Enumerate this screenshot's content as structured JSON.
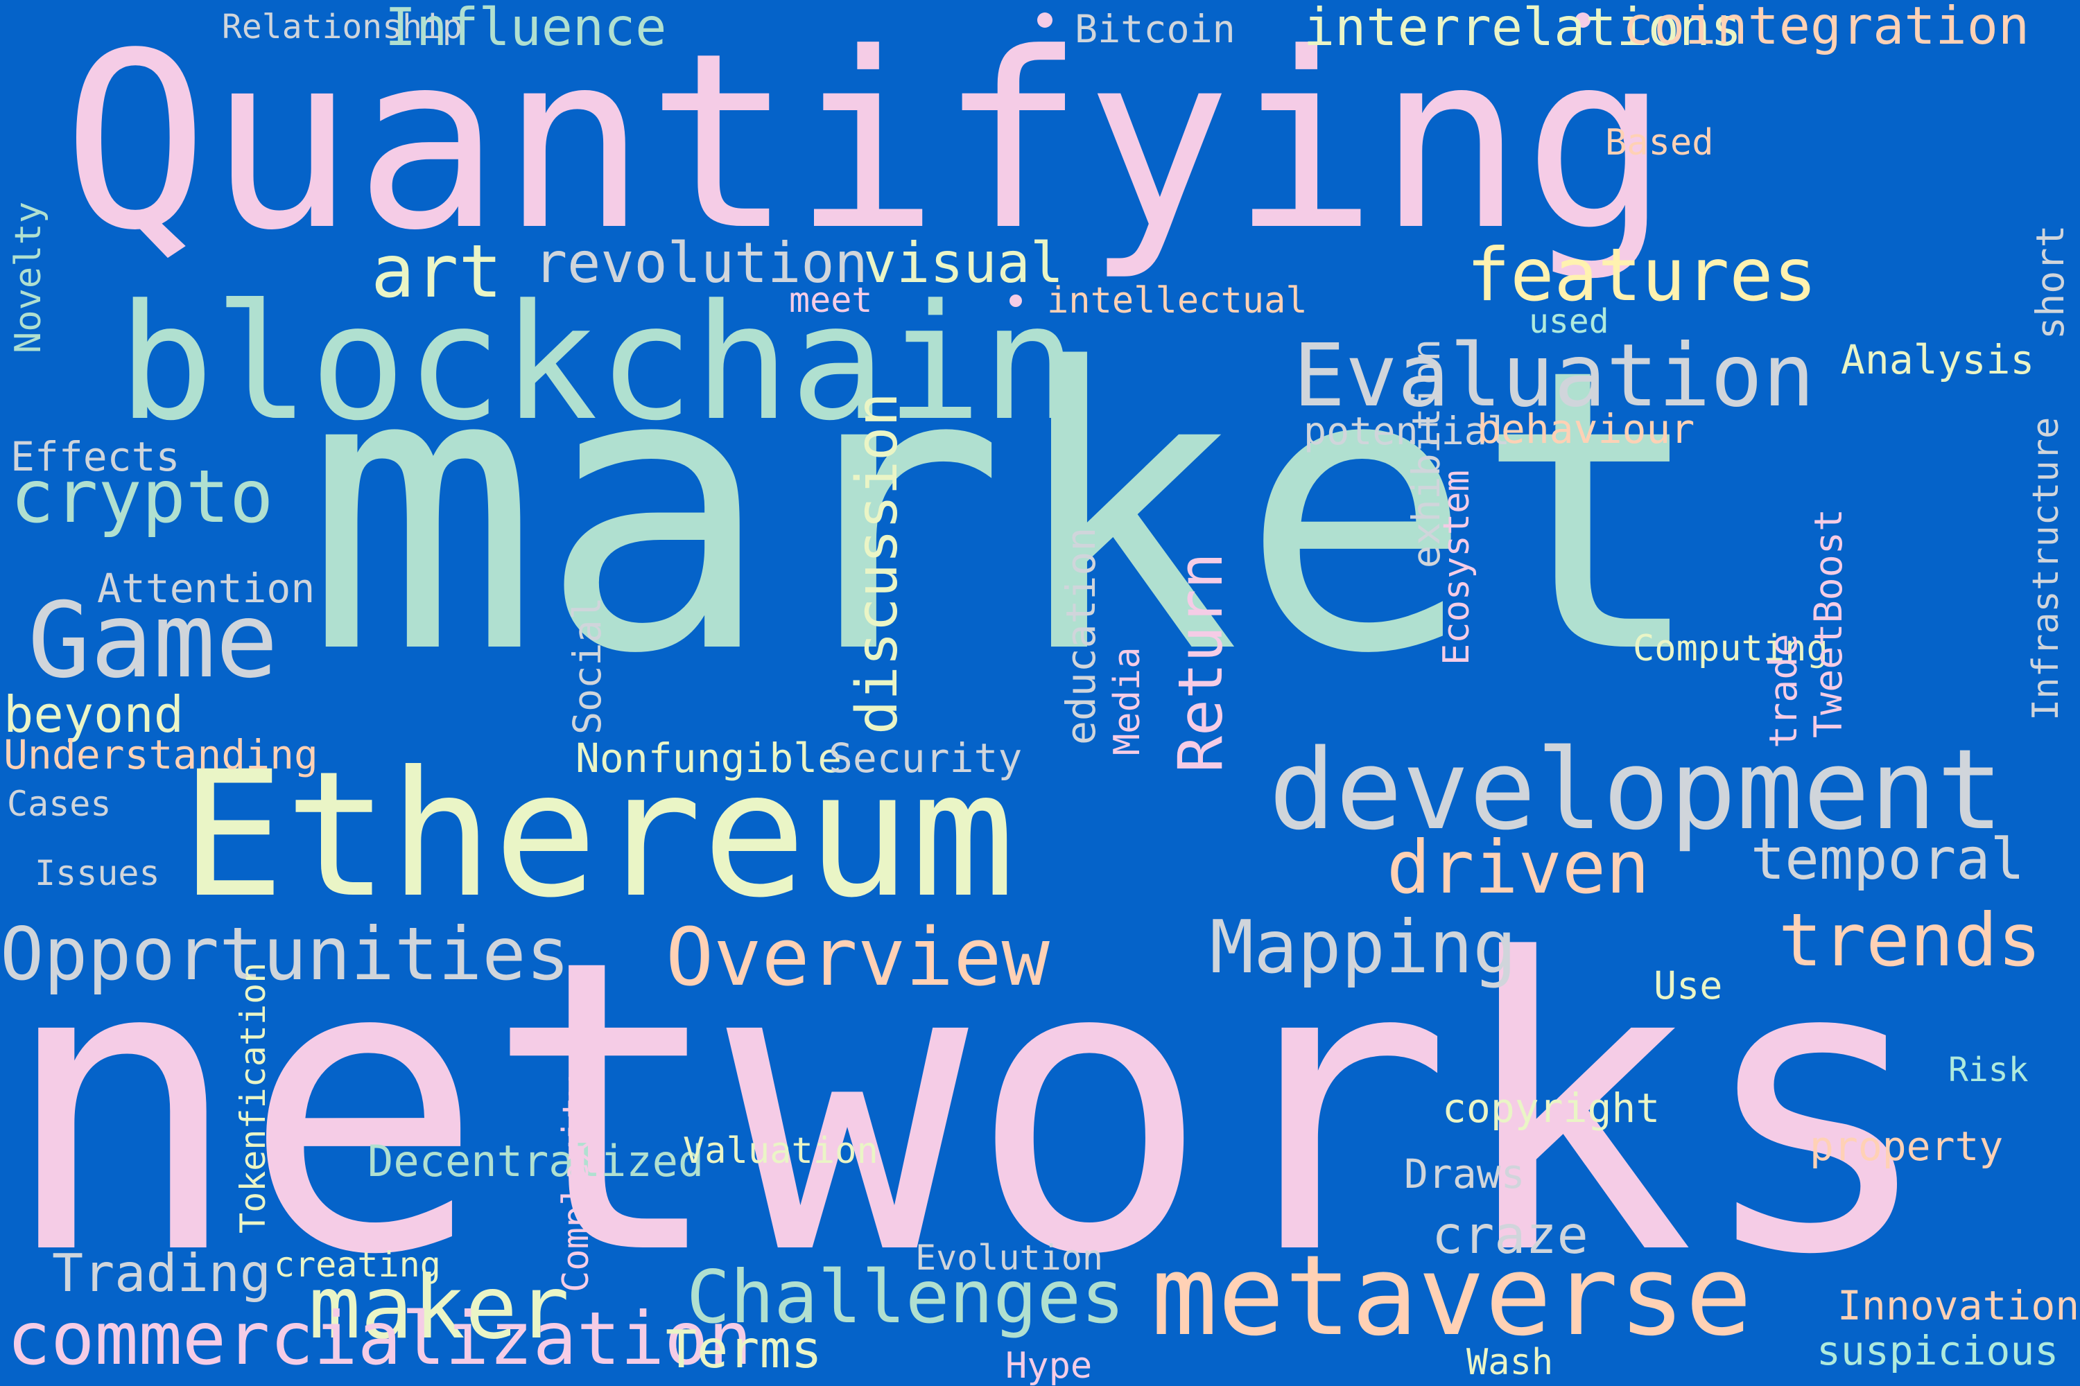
{
  "background_color": "#0563c9",
  "palette": {
    "pink": "#f5cce6",
    "mint": "#b0e0d0",
    "cream": "#eaf5c6",
    "yellow": "#fff2b0",
    "peach": "#ffd1b5",
    "silver": "#d0d5db",
    "aqua": "#aeeadd"
  },
  "words": [
    "Quantifying",
    "market",
    "networks",
    "Ethereum",
    "blockchain",
    "development",
    "metaverse",
    "Evaluation",
    "Game",
    "crypto",
    "maker",
    "Challenges",
    "Opportunities",
    "Overview",
    "trends",
    "Mapping",
    "driven",
    "temporal",
    "features",
    "art",
    "revolution",
    "visual",
    "Influence",
    "interrelations",
    "cointegration",
    "Bitcoin",
    "Relationship",
    "Based",
    "meet",
    "intellectual",
    "used",
    "Analysis",
    "potential",
    "behaviour",
    "Effects",
    "Attention",
    "beyond",
    "Understanding",
    "Cases",
    "Issues",
    "Nonfungible",
    "Security",
    "Computing",
    "Use",
    "Risk",
    "copyright",
    "property",
    "Draws",
    "Decentralized",
    "Valuation",
    "Trading",
    "creating",
    "craze",
    "Evolution",
    "Innovation",
    "commercialization",
    "Terms",
    "Hype",
    "Wash",
    "suspicious",
    "Novelty",
    "short",
    "Return",
    "discussion",
    "Social",
    "education",
    "Media",
    "exhibition",
    "Ecosystem",
    "trade",
    "TweetBoost",
    "Infrastructure",
    "Tokenfication",
    "Complexity"
  ]
}
